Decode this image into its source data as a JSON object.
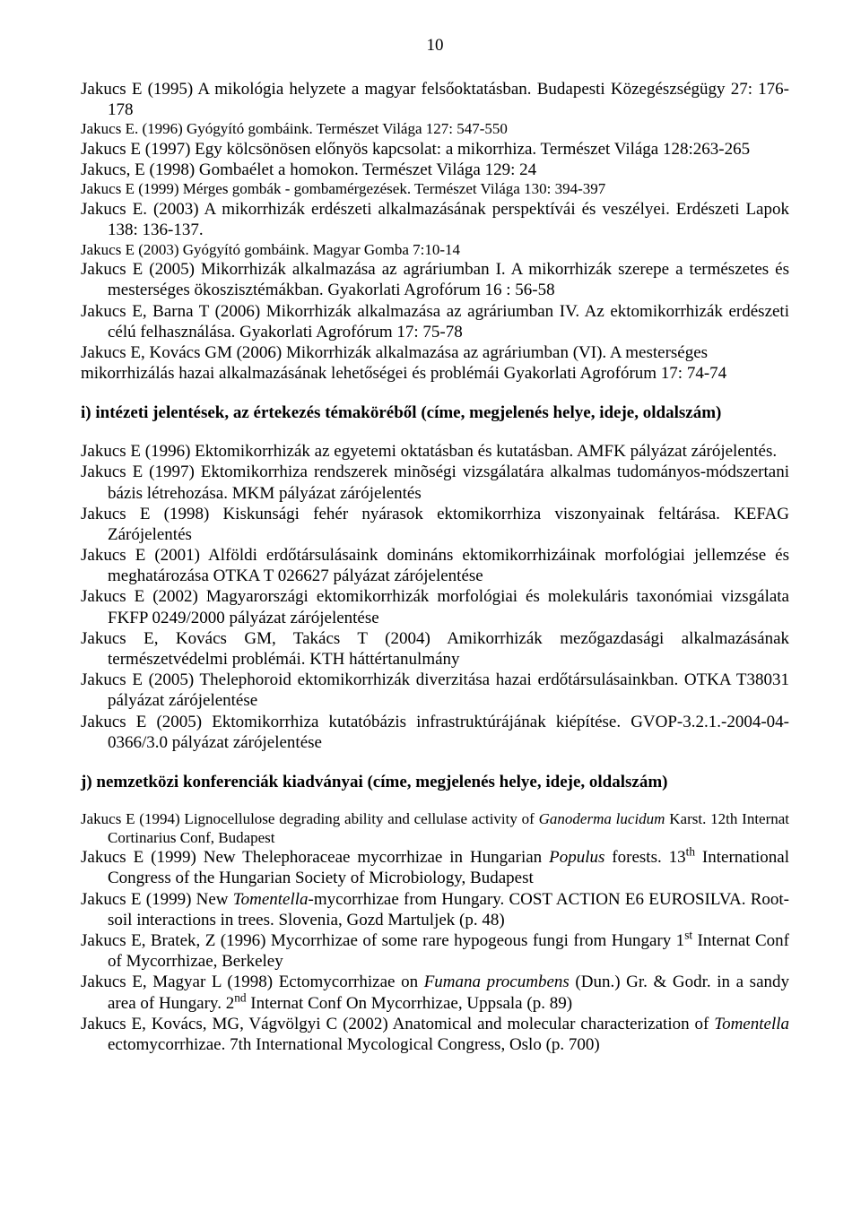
{
  "page_number": "10",
  "block1": {
    "l1a": "Jakucs E (1995) A mikológia helyzete a magyar felsőoktatásban. Budapesti Közegészségügy 27: 176-178",
    "l2_small": "Jakucs E. (1996) Gyógyító gombáink. Természet Világa 127: 547-550",
    "l3": "Jakucs E (1997) Egy kölcsönösen előnyös kapcsolat: a mikorrhiza. Természet Világa 128:263-265",
    "l4": "Jakucs, E (1998) Gombaélet a homokon. Természet Világa 129: 24",
    "l5_small": "Jakucs E (1999) Mérges gombák - gombamérgezések. Természet Világa 130: 394-397",
    "l6": "Jakucs E. (2003) A mikorrhizák erdészeti alkalmazásának perspektívái és veszélyei. Erdészeti Lapok 138: 136-137.",
    "l7_small": "Jakucs E (2003) Gyógyító gombáink. Magyar Gomba 7:10-14",
    "l8": "Jakucs E (2005) Mikorrhizák alkalmazása az agráriumban I. A mikorrhizák szerepe a természetes és mesterséges ökoszisztémákban. Gyakorlati Agrofórum 16 : 56-58",
    "l9": "Jakucs E, Barna T (2006) Mikorrhizák alkalmazása az agráriumban IV. Az ektomikorrhizák erdészeti célú felhasználása. Gyakorlati Agrofórum 17: 75-78",
    "l10a": "Jakucs E, Kovács GM (2006) Mikorrhizák alkalmazása az agráriumban (VI). A mesterséges",
    "l10b": "mikorrhizálás hazai alkalmazásának lehetőségei és problémái Gyakorlati Agrofórum 17: 74-74"
  },
  "sect_i": "i) intézeti jelentések, az értekezés témaköréből (címe, megjelenés helye, ideje, oldalszám)",
  "block2": {
    "l1": "Jakucs E (1996) Ektomikorrhizák az egyetemi oktatásban és kutatásban. AMFK pályázat zárójelentés.",
    "l2": "Jakucs E (1997) Ektomikorrhiza rendszerek minõségi vizsgálatára alkalmas tudományos-módszertani bázis létrehozása. MKM pályázat zárójelentés",
    "l3": "Jakucs E (1998) Kiskunsági fehér nyárasok ektomikorrhiza viszonyainak feltárása. KEFAG Zárójelentés",
    "l4": "Jakucs E (2001) Alföldi erdőtársulásaink domináns ektomikorrhizáinak morfológiai jellemzése és meghatározása OTKA T 026627 pályázat zárójelentése",
    "l5": "Jakucs E (2002) Magyarországi ektomikorrhizák morfológiai és molekuláris taxonómiai vizsgálata FKFP 0249/2000 pályázat zárójelentése",
    "l6": "Jakucs E, Kovács GM, Takács T (2004) Amikorrhizák mezőgazdasági alkalmazásának természetvédelmi problémái. KTH háttértanulmány",
    "l7": "Jakucs E (2005) Thelephoroid ektomikorrhizák diverzitása hazai erdőtársulásainkban.         OTKA T38031 pályázat zárójelentése",
    "l8": "Jakucs E (2005) Ektomikorrhiza kutatóbázis infrastruktúrájának kiépítése. GVOP-3.2.1.-2004-04-0366/3.0 pályázat zárójelentése"
  },
  "sect_j": "j) nemzetközi konferenciák kiadványai (címe, megjelenés helye, ideje, oldalszám)",
  "block3": {
    "l1_pre": "Jakucs E (1994) Lignocellulose degrading ability and cellulase activity  of ",
    "l1_it": "Ganoderma lucidum",
    "l1_post": " Karst. 12th Internat Cortinarius Conf, Budapest",
    "l2_pre": "Jakucs E (1999) New Thelephoraceae mycorrhizae in Hungarian ",
    "l2_it": "Populus",
    "l2_post1": " forests. 13",
    "l2_sup": "th",
    "l2_post2": " International Congress of the Hungarian Society of Microbiology, Budapest",
    "l3_pre": "Jakucs E (1999) New ",
    "l3_it": "Tomentella",
    "l3_post": "-mycorrhizae from Hungary. COST ACTION E6 EUROSILVA. Root-soil interactions in trees. Slovenia, Gozd Martuljek (p. 48)",
    "l4_pre": "Jakucs E, Bratek, Z (1996) Mycorrhizae of some rare hypogeous fungi from Hungary  1",
    "l4_sup": "st",
    "l4_post": " Internat Conf of Mycorrhizae, Berkeley",
    "l5_pre": "Jakucs E, Magyar L (1998) Ectomycorrhizae on ",
    "l5_it": "Fumana procumbens",
    "l5_post1": " (Dun.) Gr. & Godr. in a sandy area of Hungary. 2",
    "l5_sup": "nd",
    "l5_post2": " Internat Conf On Mycorrhizae, Uppsala (p. 89)",
    "l6_pre": "Jakucs E, Kovács, MG, Vágvölgyi C (2002) Anatomical and molecular characterization of ",
    "l6_it": "Tomentella",
    "l6_post": " ectomycorrhizae. 7th International Mycological Congress, Oslo (p. 700)"
  }
}
